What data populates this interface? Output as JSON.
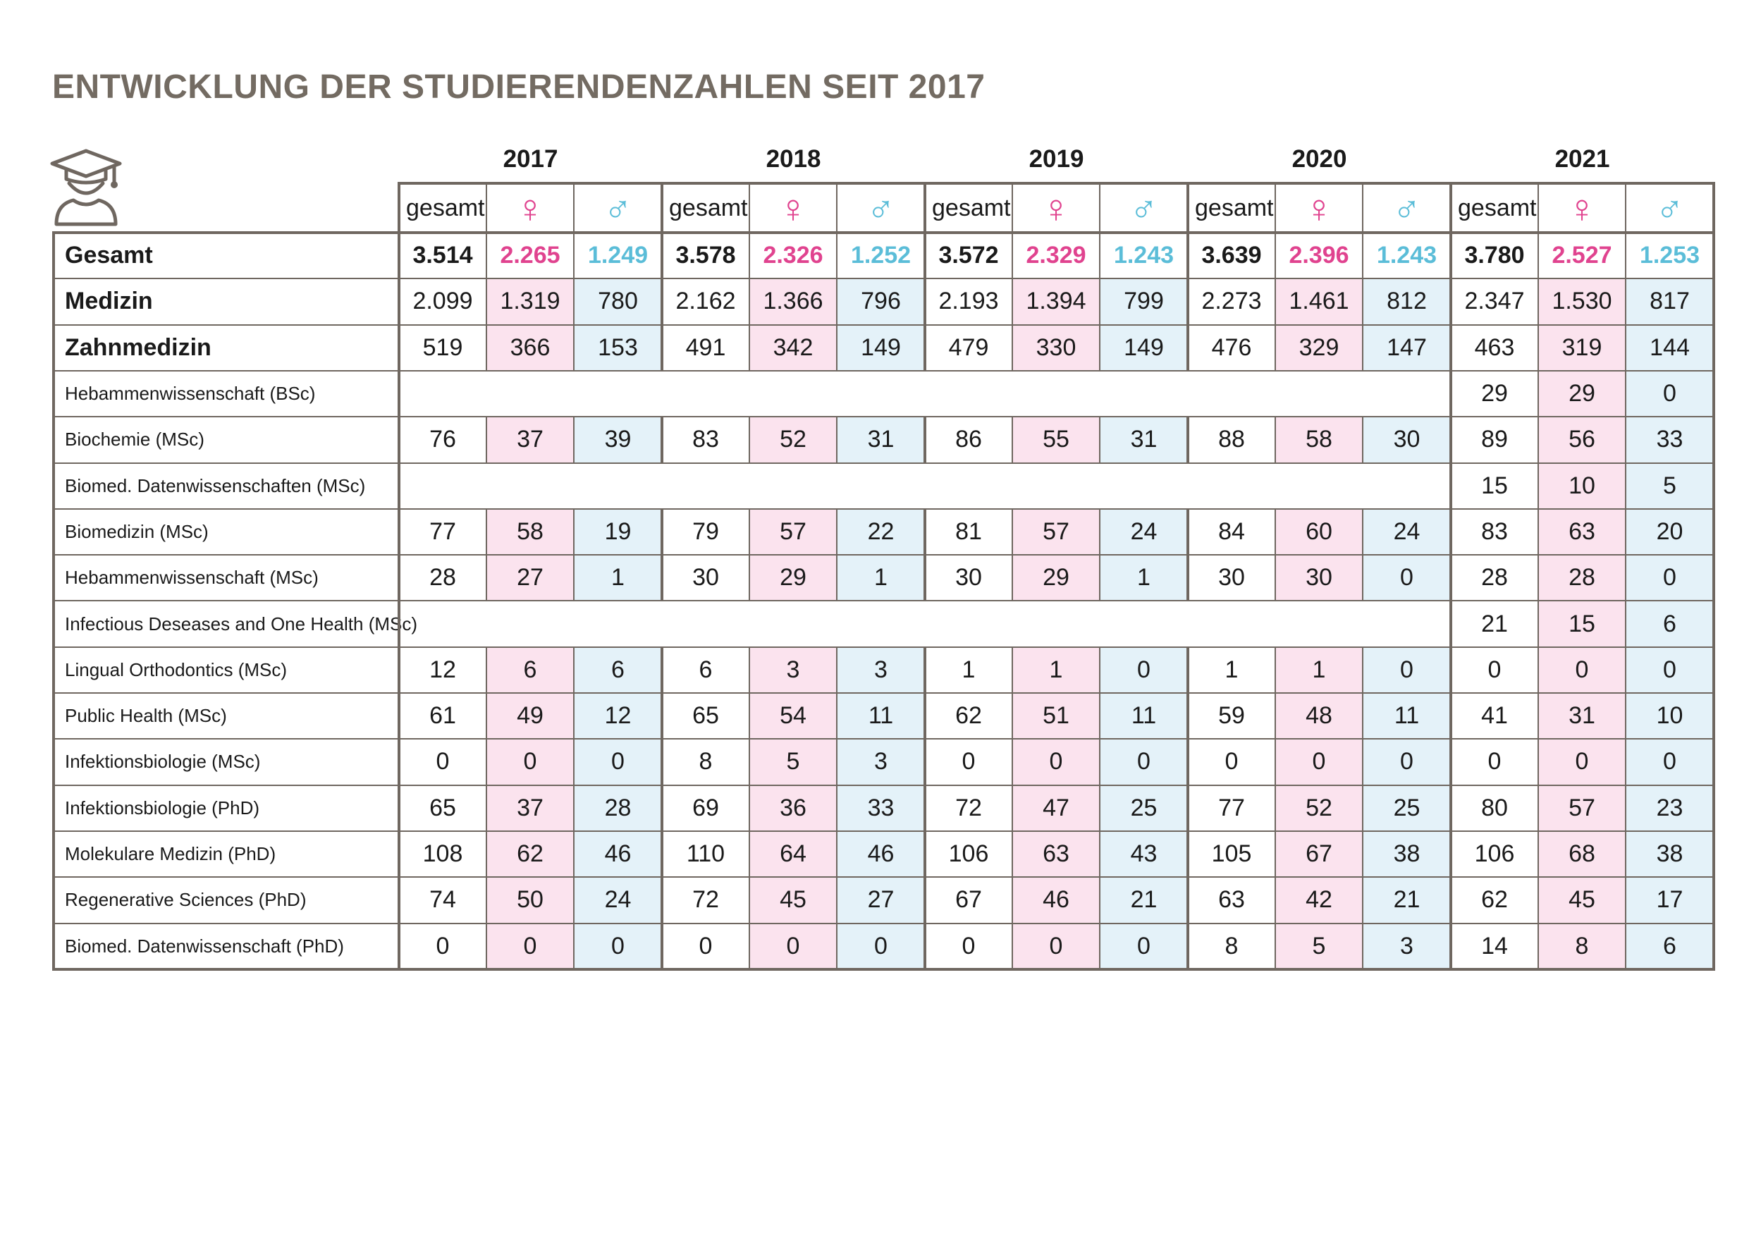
{
  "title": "ENTWICKLUNG DER STUDIERENDENZAHLEN SEIT 2017",
  "icon": "graduate-icon",
  "colors": {
    "female": "#e0438f",
    "male": "#5bbdd8",
    "female_bg": "#fbe3ee",
    "male_bg": "#e4f2f9",
    "border": "#6f6760",
    "title": "#736b62"
  },
  "subheaders": {
    "total": "gesamt",
    "female": "♀",
    "male": "♂"
  },
  "chart_data": {
    "type": "table",
    "years": [
      "2017",
      "2018",
      "2019",
      "2020",
      "2021"
    ],
    "columns_per_year": [
      "gesamt",
      "♀",
      "♂"
    ],
    "rows": [
      {
        "label": "Gesamt",
        "style": "total",
        "values": [
          [
            "3.514",
            "2.265",
            "1.249"
          ],
          [
            "3.578",
            "2.326",
            "1.252"
          ],
          [
            "3.572",
            "2.329",
            "1.243"
          ],
          [
            "3.639",
            "2.396",
            "1.243"
          ],
          [
            "3.780",
            "2.527",
            "1.253"
          ]
        ]
      },
      {
        "label": "Medizin",
        "style": "bold",
        "values": [
          [
            "2.099",
            "1.319",
            "780"
          ],
          [
            "2.162",
            "1.366",
            "796"
          ],
          [
            "2.193",
            "1.394",
            "799"
          ],
          [
            "2.273",
            "1.461",
            "812"
          ],
          [
            "2.347",
            "1.530",
            "817"
          ]
        ]
      },
      {
        "label": "Zahnmedizin",
        "style": "bold",
        "values": [
          [
            "519",
            "366",
            "153"
          ],
          [
            "491",
            "342",
            "149"
          ],
          [
            "479",
            "330",
            "149"
          ],
          [
            "476",
            "329",
            "147"
          ],
          [
            "463",
            "319",
            "144"
          ]
        ]
      },
      {
        "label": "Hebammenwissenschaft (BSc)",
        "style": "normal",
        "values": [
          null,
          null,
          null,
          null,
          [
            "29",
            "29",
            "0"
          ]
        ]
      },
      {
        "label": "Biochemie (MSc)",
        "style": "normal",
        "values": [
          [
            "76",
            "37",
            "39"
          ],
          [
            "83",
            "52",
            "31"
          ],
          [
            "86",
            "55",
            "31"
          ],
          [
            "88",
            "58",
            "30"
          ],
          [
            "89",
            "56",
            "33"
          ]
        ]
      },
      {
        "label": "Biomed. Datenwissenschaften (MSc)",
        "style": "normal",
        "values": [
          null,
          null,
          null,
          null,
          [
            "15",
            "10",
            "5"
          ]
        ]
      },
      {
        "label": "Biomedizin (MSc)",
        "style": "normal",
        "values": [
          [
            "77",
            "58",
            "19"
          ],
          [
            "79",
            "57",
            "22"
          ],
          [
            "81",
            "57",
            "24"
          ],
          [
            "84",
            "60",
            "24"
          ],
          [
            "83",
            "63",
            "20"
          ]
        ]
      },
      {
        "label": "Hebammenwissenschaft (MSc)",
        "style": "normal",
        "values": [
          [
            "28",
            "27",
            "1"
          ],
          [
            "30",
            "29",
            "1"
          ],
          [
            "30",
            "29",
            "1"
          ],
          [
            "30",
            "30",
            "0"
          ],
          [
            "28",
            "28",
            "0"
          ]
        ]
      },
      {
        "label": "Infectious Deseases and One Health (MSc)",
        "style": "normal",
        "values": [
          null,
          null,
          null,
          null,
          [
            "21",
            "15",
            "6"
          ]
        ]
      },
      {
        "label": "Lingual Orthodontics (MSc)",
        "style": "normal",
        "values": [
          [
            "12",
            "6",
            "6"
          ],
          [
            "6",
            "3",
            "3"
          ],
          [
            "1",
            "1",
            "0"
          ],
          [
            "1",
            "1",
            "0"
          ],
          [
            "0",
            "0",
            "0"
          ]
        ]
      },
      {
        "label": "Public Health (MSc)",
        "style": "normal",
        "values": [
          [
            "61",
            "49",
            "12"
          ],
          [
            "65",
            "54",
            "11"
          ],
          [
            "62",
            "51",
            "11"
          ],
          [
            "59",
            "48",
            "11"
          ],
          [
            "41",
            "31",
            "10"
          ]
        ]
      },
      {
        "label": "Infektionsbiologie (MSc)",
        "style": "normal",
        "values": [
          [
            "0",
            "0",
            "0"
          ],
          [
            "8",
            "5",
            "3"
          ],
          [
            "0",
            "0",
            "0"
          ],
          [
            "0",
            "0",
            "0"
          ],
          [
            "0",
            "0",
            "0"
          ]
        ]
      },
      {
        "label": "Infektionsbiologie (PhD)",
        "style": "normal",
        "values": [
          [
            "65",
            "37",
            "28"
          ],
          [
            "69",
            "36",
            "33"
          ],
          [
            "72",
            "47",
            "25"
          ],
          [
            "77",
            "52",
            "25"
          ],
          [
            "80",
            "57",
            "23"
          ]
        ]
      },
      {
        "label": "Molekulare Medizin (PhD)",
        "style": "normal",
        "values": [
          [
            "108",
            "62",
            "46"
          ],
          [
            "110",
            "64",
            "46"
          ],
          [
            "106",
            "63",
            "43"
          ],
          [
            "105",
            "67",
            "38"
          ],
          [
            "106",
            "68",
            "38"
          ]
        ]
      },
      {
        "label": "Regenerative Sciences (PhD)",
        "style": "normal",
        "values": [
          [
            "74",
            "50",
            "24"
          ],
          [
            "72",
            "45",
            "27"
          ],
          [
            "67",
            "46",
            "21"
          ],
          [
            "63",
            "42",
            "21"
          ],
          [
            "62",
            "45",
            "17"
          ]
        ]
      },
      {
        "label": "Biomed. Datenwissenschaft (PhD)",
        "style": "normal",
        "values": [
          [
            "0",
            "0",
            "0"
          ],
          [
            "0",
            "0",
            "0"
          ],
          [
            "0",
            "0",
            "0"
          ],
          [
            "8",
            "5",
            "3"
          ],
          [
            "14",
            "8",
            "6"
          ]
        ]
      }
    ]
  }
}
